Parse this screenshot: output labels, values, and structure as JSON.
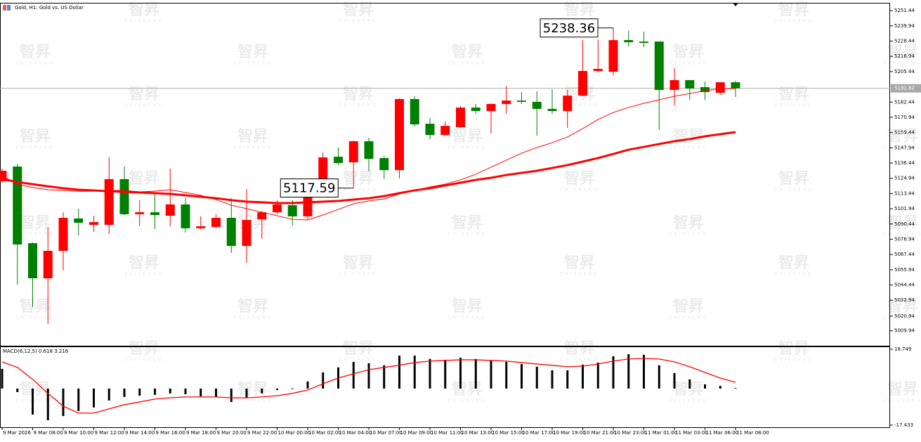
{
  "watermark": {
    "logo": "智昇",
    "text": "ZHISHENG"
  },
  "chart_data": [
    {
      "type": "candlestick",
      "title": "Gold, H1: Gold vs. US Dollar",
      "categories": [
        "9 Mar 2026",
        null,
        "9 Mar 08:00",
        null,
        "9 Mar 10:00",
        null,
        "9 Mar 12:00",
        null,
        "9 Mar 14:00",
        null,
        "9 Mar 16:00",
        null,
        "9 Mar 18:00",
        null,
        "9 Mar 20:00",
        null,
        "9 Mar 22:00",
        null,
        "10 Mar 00:00",
        null,
        "10 Mar 02:00",
        null,
        "10 Mar 04:00",
        null,
        "10 Mar 07:00",
        null,
        "10 Mar 09:00",
        null,
        "10 Mar 11:00",
        null,
        "10 Mar 13:00",
        null,
        "10 Mar 15:00",
        null,
        "10 Mar 17:00",
        null,
        "10 Mar 19:00",
        null,
        "10 Mar 21:00",
        null,
        "10 Mar 23:00",
        null,
        "11 Mar 01:00",
        null,
        "11 Mar 03:00",
        null,
        "11 Mar 06:00",
        null,
        "11 Mar 08:00"
      ],
      "open": [
        5122.7,
        5133.8,
        5076.0,
        5049.5,
        5070.2,
        5094.6,
        5089.8,
        5089.8,
        5124.3,
        5097.8,
        5099.3,
        5096.7,
        5105.2,
        5087.2,
        5088.2,
        5095.1,
        5073.9,
        5094.0,
        5099.3,
        5104.6,
        5096.2,
        5123.7,
        5141.2,
        5137.0,
        5152.9,
        5140.2,
        5131.1,
        5184.7,
        5166.1,
        5157.6,
        5163.5,
        5178.3,
        5175.7,
        5181.0,
        5183.6,
        5182.6,
        5177.3,
        5175.7,
        5187.3,
        5205.9,
        5205.3,
        5229.2,
        5228.1,
        5228.1,
        5191.6,
        5199.0,
        5193.7,
        5189.4,
        5197.4
      ],
      "high": [
        5132.2,
        5135.9,
        5076.5,
        5088.2,
        5099.3,
        5102.0,
        5096.7,
        5140.7,
        5133.8,
        5108.4,
        5113.7,
        5132.2,
        5109.9,
        5096.2,
        5097.8,
        5109.9,
        5116.8,
        5100.4,
        5108.4,
        5108.4,
        5120.5,
        5144.4,
        5148.1,
        5153.4,
        5155.5,
        5141.7,
        5185.2,
        5186.8,
        5170.4,
        5167.7,
        5179.4,
        5181.0,
        5181.5,
        5194.7,
        5190.0,
        5190.5,
        5192.1,
        5191.6,
        5229.2,
        5229.7,
        5238.36,
        5236.1,
        5235.6,
        5228.1,
        5208.0,
        5199.0,
        5197.9,
        5197.4,
        5198.5
      ],
      "low": [
        5121.6,
        5044.8,
        5027.8,
        5015.1,
        5055.4,
        5081.9,
        5084.5,
        5082.9,
        5097.2,
        5088.7,
        5086.6,
        5088.7,
        5084.0,
        5086.6,
        5087.7,
        5068.6,
        5061.2,
        5079.2,
        5097.8,
        5089.3,
        5094.0,
        5123.2,
        5134.9,
        5117.59,
        5130.1,
        5124.3,
        5124.8,
        5164.0,
        5154.5,
        5157.1,
        5162.9,
        5173.5,
        5158.7,
        5173.5,
        5181.0,
        5157.1,
        5173.5,
        5162.9,
        5186.8,
        5204.8,
        5202.7,
        5224.4,
        5223.9,
        5161.4,
        5179.9,
        5184.1,
        5184.1,
        5187.9,
        5186.3
      ],
      "close": [
        5130.6,
        5075.0,
        5049.5,
        5070.2,
        5095.1,
        5091.4,
        5091.9,
        5124.3,
        5097.8,
        5099.3,
        5097.2,
        5105.2,
        5087.2,
        5088.7,
        5095.1,
        5073.9,
        5093.5,
        5099.3,
        5105.2,
        5096.2,
        5116.3,
        5140.7,
        5136.4,
        5152.9,
        5139.6,
        5131.1,
        5184.7,
        5165.6,
        5157.6,
        5164.5,
        5178.3,
        5175.7,
        5181.0,
        5183.6,
        5182.6,
        5177.3,
        5175.7,
        5187.3,
        5205.9,
        5207.5,
        5229.2,
        5227.6,
        5227.1,
        5191.6,
        5199.0,
        5192.6,
        5190.0,
        5197.4,
        5192.82
      ],
      "up_color": "#ff0000",
      "down_color": "#008000",
      "series": [
        {
          "color": "#ff0000",
          "line_width": 1,
          "values": [
            5126.9,
            5120.5,
            5117.9,
            5116.3,
            5115.8,
            5115.2,
            5115.2,
            5115.8,
            5115.8,
            5114.7,
            5115.2,
            5116.3,
            5114.2,
            5112.1,
            5108.9,
            5104.6,
            5102.0,
            5099.3,
            5096.7,
            5094.0,
            5093.5,
            5097.2,
            5101.5,
            5105.7,
            5107.8,
            5109.4,
            5113.1,
            5115.8,
            5118.4,
            5120.5,
            5123.7,
            5128.0,
            5133.3,
            5138.6,
            5143.9,
            5148.1,
            5151.8,
            5156.1,
            5162.4,
            5169.3,
            5174.6,
            5178.3,
            5181.5,
            5184.1,
            5186.8,
            5188.9,
            5191.0,
            5192.6,
            5192.6
          ]
        },
        {
          "color": "#ff0000",
          "line_width": 3,
          "values": [
            5124.3,
            5122.1,
            5120.5,
            5118.9,
            5117.4,
            5116.3,
            5115.8,
            5115.2,
            5114.7,
            5114.2,
            5113.7,
            5113.1,
            5112.1,
            5111.0,
            5109.9,
            5108.4,
            5107.3,
            5106.8,
            5106.2,
            5106.2,
            5106.8,
            5107.3,
            5107.8,
            5108.9,
            5109.9,
            5111.5,
            5113.7,
            5115.8,
            5117.4,
            5119.5,
            5121.6,
            5123.7,
            5125.3,
            5127.4,
            5129.0,
            5130.6,
            5132.7,
            5134.9,
            5137.5,
            5140.2,
            5143.3,
            5146.5,
            5148.6,
            5150.8,
            5152.9,
            5154.5,
            5156.6,
            5158.2,
            5159.8
          ]
        }
      ],
      "annotations": [
        {
          "value": 5238.36
        },
        {
          "value": 5117.59
        }
      ],
      "current_price": 5192.82,
      "ylim": [
        4998.6,
        5256.8
      ],
      "yticks": [
        5251.44,
        5239.94,
        5228.44,
        5216.94,
        5205.44,
        5182.44,
        5170.94,
        5159.44,
        5147.94,
        5136.44,
        5124.94,
        5113.44,
        5101.94,
        5090.44,
        5078.94,
        5067.44,
        5055.94,
        5044.44,
        5032.94,
        5020.94,
        5009.94
      ],
      "grid": false
    },
    {
      "type": "bar",
      "title": "MACD(6,12,5) 0.618 3.216",
      "color": "#000000",
      "values": [
        9.4,
        -1.7,
        -12.4,
        -15.1,
        -13.1,
        -10.7,
        -9.0,
        -5.7,
        -4.0,
        -3.4,
        -3.0,
        -2.3,
        -2.7,
        -3.7,
        -4.0,
        -6.4,
        -4.4,
        -2.3,
        -0.7,
        -0.3,
        3.4,
        7.7,
        10.1,
        12.7,
        12.1,
        11.1,
        15.7,
        15.7,
        14.1,
        13.7,
        14.7,
        14.1,
        13.4,
        12.7,
        11.7,
        10.4,
        8.7,
        8.7,
        11.4,
        12.4,
        15.4,
        16.4,
        16.1,
        11.1,
        7.4,
        4.4,
        2.0,
        1.3,
        0.3
      ],
      "series": [
        {
          "color": "#ff0000",
          "values": [
            12.7,
            10.1,
            4.4,
            -2.3,
            -8.4,
            -11.7,
            -11.7,
            -9.7,
            -7.7,
            -6.4,
            -5.0,
            -4.4,
            -4.0,
            -4.0,
            -4.0,
            -4.4,
            -4.4,
            -4.0,
            -3.4,
            -2.3,
            -0.7,
            2.3,
            5.0,
            7.0,
            9.0,
            10.1,
            11.1,
            12.4,
            13.1,
            13.4,
            13.7,
            13.7,
            13.4,
            13.1,
            12.4,
            11.7,
            11.1,
            10.4,
            10.7,
            11.7,
            13.1,
            14.1,
            14.4,
            14.1,
            12.7,
            10.4,
            7.7,
            5.0,
            3.0
          ]
        }
      ],
      "ylim": [
        -18.44,
        19.75
      ],
      "yticks": [
        18.749,
        -17.433
      ]
    }
  ]
}
